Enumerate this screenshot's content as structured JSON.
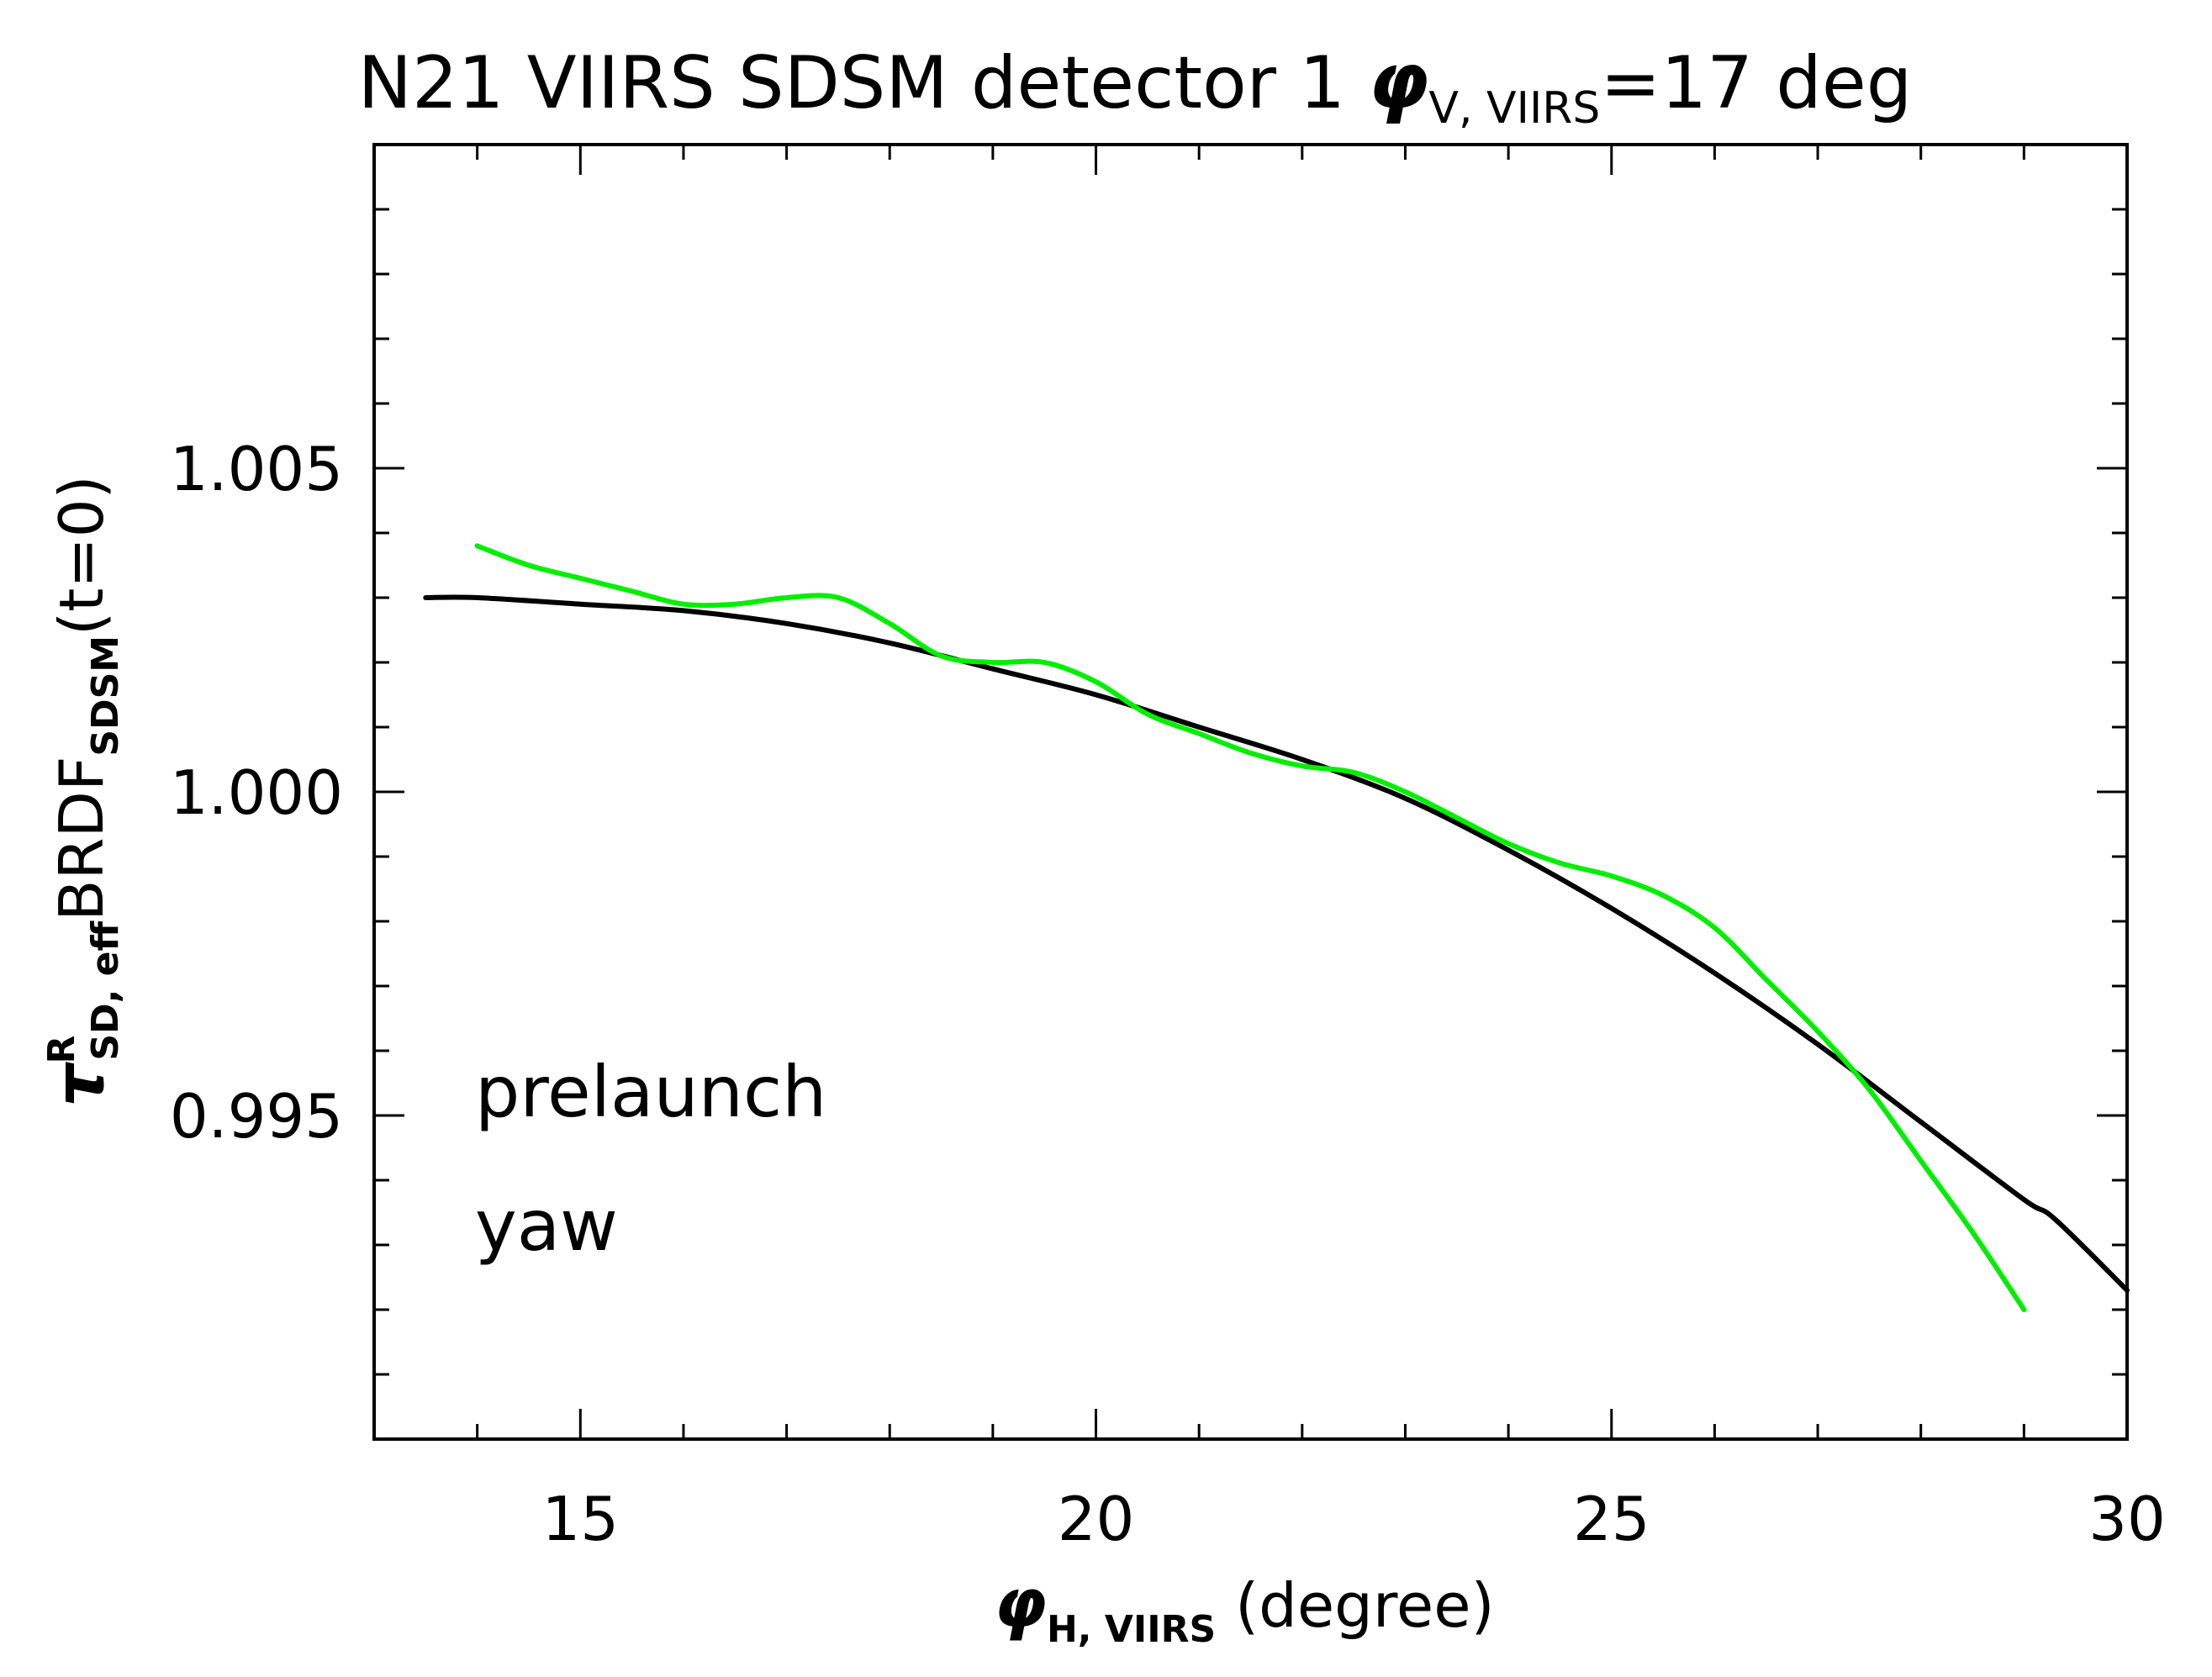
{
  "chart_data": {
    "type": "line",
    "title": {
      "prefix": "N21 VIIRS SDSM detector 1 ",
      "symbol": "φ",
      "subscript": "V, VIIRS",
      "suffix": "=17 deg"
    },
    "xlabel": {
      "symbol": "φ",
      "subscript": "H, VIIRS",
      "suffix": " (degree)"
    },
    "ylabel": {
      "symbol": "τ",
      "superscript": "R",
      "subscript": "SD, eff",
      "middle": "BRDF",
      "subscript2": "SDSM",
      "suffix": "(t=0)"
    },
    "xlim": [
      13,
      30
    ],
    "ylim": [
      0.99,
      1.01
    ],
    "x_ticks": [
      15,
      20,
      25,
      30
    ],
    "x_tick_labels": [
      "15",
      "20",
      "25",
      "30"
    ],
    "y_ticks": [
      0.995,
      1.0,
      1.005
    ],
    "y_tick_labels": [
      "0.995",
      "1.000",
      "1.005"
    ],
    "x_minor_step": 1,
    "y_minor_step": 0.001,
    "series": [
      {
        "name": "prelaunch",
        "color": "#000000",
        "x": [
          13.5,
          14.0,
          15.0,
          16.0,
          17.0,
          18.0,
          19.0,
          20.0,
          21.0,
          22.0,
          23.0,
          24.0,
          25.0,
          26.0,
          27.0,
          28.0,
          29.0,
          29.3,
          30.0
        ],
        "y": [
          1.003,
          1.003,
          1.0029,
          1.0028,
          1.0026,
          1.0023,
          1.0019,
          1.0015,
          1.001,
          1.0005,
          0.9999,
          0.9991,
          0.9982,
          0.9972,
          0.9961,
          0.9949,
          0.9937,
          0.9934,
          0.9923
        ]
      },
      {
        "name": "yaw",
        "color": "#00ee00",
        "x": [
          14.0,
          14.5,
          15.0,
          15.5,
          16.0,
          16.5,
          17.0,
          17.5,
          18.0,
          18.5,
          19.0,
          19.5,
          20.0,
          20.5,
          21.0,
          21.5,
          22.0,
          22.5,
          23.0,
          23.5,
          24.0,
          24.5,
          25.0,
          25.5,
          26.0,
          26.5,
          27.0,
          27.5,
          28.0,
          28.5,
          29.0
        ],
        "y": [
          1.0038,
          1.0035,
          1.0033,
          1.0031,
          1.0029,
          1.0029,
          1.003,
          1.003,
          1.0026,
          1.0021,
          1.002,
          1.002,
          1.0017,
          1.0012,
          1.0009,
          1.0006,
          1.0004,
          1.0003,
          1.0,
          0.9996,
          0.9992,
          0.9989,
          0.9987,
          0.9984,
          0.9979,
          0.9971,
          0.9963,
          0.9954,
          0.9943,
          0.9932,
          0.992
        ]
      }
    ],
    "legend": {
      "placement": "lower-left",
      "entries": [
        {
          "label": "prelaunch",
          "color": "#000000"
        },
        {
          "label": "yaw",
          "color": "#00ee00"
        }
      ]
    }
  }
}
